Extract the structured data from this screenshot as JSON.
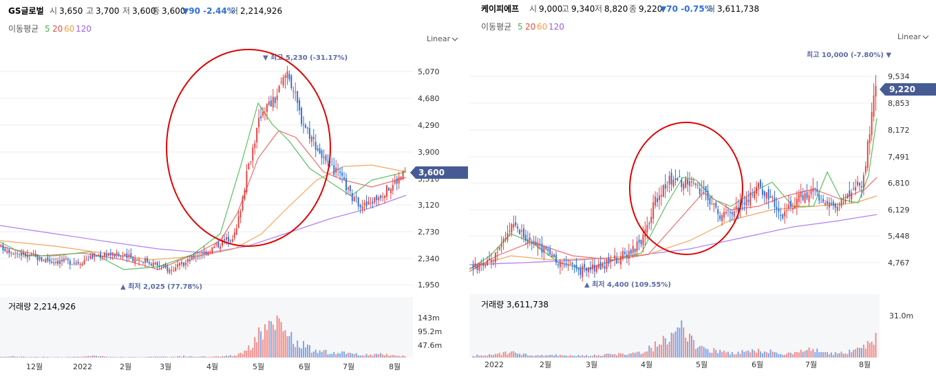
{
  "panels": [
    {
      "header": {
        "name": "GS글로벌",
        "open_label": "시",
        "open": "3,650",
        "high_label": "고",
        "high": "3,700",
        "low_label": "저",
        "low": "3,600",
        "close_label": "종",
        "close": "3,600",
        "change": "▼90 -2.44%",
        "volume_label": "거",
        "volume": "2,214,926"
      },
      "ma_legend": {
        "label": "이동평균",
        "periods": [
          "5",
          "20",
          "60",
          "120"
        ]
      },
      "scale_label": "Linear",
      "price_axis_ticks": [
        "5,070",
        "4,680",
        "4,290",
        "3,900",
        "3,510",
        "3,120",
        "2,730",
        "2,340",
        "1,950"
      ],
      "current_price_tag": "3,600",
      "annotation_high": "▼ 최고 5,230 (-31.17%)",
      "annotation_low": "▲ 최저 2,025 (77.78%)",
      "volume_label": "거래량 2,214,926",
      "volume_axis_ticks": [
        "143m",
        "95.2m",
        "47.6m"
      ],
      "x_axis_ticks": [
        "12월",
        "2022",
        "2월",
        "3월",
        "4월",
        "5월",
        "6월",
        "7월",
        "8월"
      ]
    },
    {
      "header": {
        "name": "케이피에프",
        "open_label": "시",
        "open": "9,000",
        "high_label": "고",
        "high": "9,340",
        "low_label": "저",
        "low": "8,820",
        "close_label": "종",
        "close": "9,220",
        "change": "▼70 -0.75%",
        "volume_label": "거",
        "volume": "3,611,738"
      },
      "ma_legend": {
        "label": "이동평균",
        "periods": [
          "5",
          "20",
          "60",
          "120"
        ]
      },
      "scale_label": "Linear",
      "price_axis_ticks": [
        "9,534",
        "8,853",
        "8,172",
        "7,491",
        "6,810",
        "6,129",
        "5,448",
        "4,767"
      ],
      "current_price_tag": "9,220",
      "annotation_high": "최고 10,000 (-7.80%) ▼",
      "annotation_low": "▲ 최저 4,400 (109.55%)",
      "volume_label": "거래량 3,611,738",
      "volume_axis_ticks": [
        "31.0m"
      ],
      "x_axis_ticks": [
        "2022",
        "2월",
        "3월",
        "4월",
        "5월",
        "6월",
        "7월",
        "8월"
      ]
    }
  ],
  "colors": {
    "up": "#e2423f",
    "down": "#2f6fd6",
    "ma5": "#4caf50",
    "ma20": "#e74c3c",
    "ma60": "#f39c3c",
    "ma120": "#9b59f0",
    "tag": "#465b94",
    "circle": "#e00000",
    "annotation": "#5a6aa6"
  },
  "chart_data": [
    {
      "type": "candlestick",
      "title": "GS글로벌",
      "x_ticks": [
        "12월",
        "2022",
        "2월",
        "3월",
        "4월",
        "5월",
        "6월",
        "7월",
        "8월"
      ],
      "y_ticks": [
        5070,
        4680,
        4290,
        3900,
        3510,
        3120,
        2730,
        2340,
        1950
      ],
      "ylim": [
        1950,
        5230
      ],
      "scale": "linear",
      "series": [
        {
          "name": "close",
          "values": [
            2500,
            2430,
            2380,
            2330,
            2300,
            2290,
            2280,
            2360,
            2410,
            2380,
            2340,
            2310,
            2240,
            2160,
            2250,
            2380,
            2460,
            2580,
            2690,
            3700,
            4500,
            4650,
            5100,
            4400,
            4050,
            3700,
            3550,
            3200,
            3100,
            3250,
            3400,
            3600
          ]
        },
        {
          "name": "volume",
          "values": [
            3,
            5,
            2,
            3,
            2,
            2,
            3,
            8,
            4,
            3,
            2,
            2,
            4,
            3,
            6,
            4,
            5,
            6,
            10,
            40,
            120,
            143,
            95,
            60,
            30,
            25,
            20,
            18,
            12,
            15,
            10,
            8
          ]
        }
      ],
      "moving_average_periods": [
        5,
        20,
        60,
        120
      ],
      "annotations": {
        "high": 5230,
        "low": 2025,
        "current": 3600
      }
    },
    {
      "type": "candlestick",
      "title": "케이피에프",
      "x_ticks": [
        "2022",
        "2월",
        "3월",
        "4월",
        "5월",
        "6월",
        "7월",
        "8월"
      ],
      "y_ticks": [
        9534,
        8853,
        8172,
        7491,
        6810,
        6129,
        5448,
        4767
      ],
      "ylim": [
        4400,
        10000
      ],
      "scale": "linear",
      "series": [
        {
          "name": "close",
          "values": [
            4650,
            4700,
            5100,
            5650,
            5450,
            5200,
            4900,
            4750,
            4550,
            4600,
            4700,
            4850,
            5050,
            5300,
            6300,
            6900,
            6850,
            6700,
            6500,
            6000,
            6100,
            6400,
            6700,
            6300,
            6000,
            6400,
            6600,
            6300,
            6200,
            6500,
            6900,
            9220
          ]
        },
        {
          "name": "volume",
          "values": [
            2,
            3,
            4,
            5,
            3,
            2,
            2,
            3,
            2,
            2,
            3,
            3,
            4,
            5,
            12,
            20,
            31,
            15,
            8,
            6,
            5,
            6,
            8,
            6,
            4,
            5,
            8,
            5,
            4,
            6,
            10,
            25
          ]
        }
      ],
      "moving_average_periods": [
        5,
        20,
        60,
        120
      ],
      "annotations": {
        "high": 10000,
        "low": 4400,
        "current": 9220
      }
    }
  ]
}
